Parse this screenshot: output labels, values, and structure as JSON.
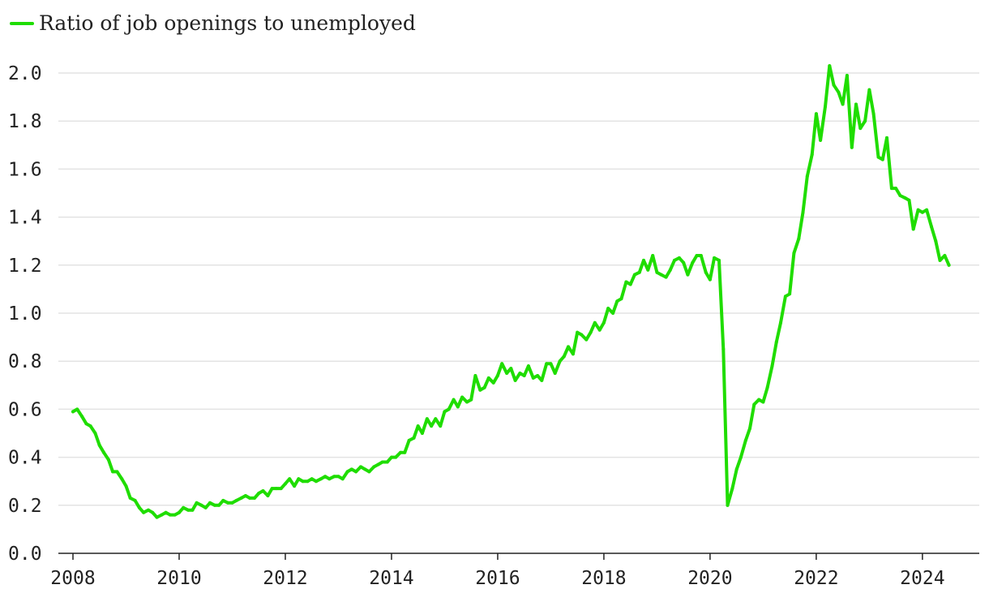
{
  "legend": {
    "label": "Ratio of job openings to unemployed"
  },
  "colors": {
    "series": "#1fdd00",
    "grid": "#e3e3e3",
    "axis": "#222222"
  },
  "chart_data": {
    "type": "line",
    "title": "",
    "xlabel": "",
    "ylabel": "",
    "xlim": [
      2008,
      2024.75
    ],
    "ylim": [
      0,
      2.0
    ],
    "grid": true,
    "legend_position": "top-left",
    "x_ticks": [
      "2008",
      "2010",
      "2012",
      "2014",
      "2016",
      "2018",
      "2020",
      "2022",
      "2024"
    ],
    "y_ticks": [
      "0.0",
      "0.2",
      "0.4",
      "0.6",
      "0.8",
      "1.0",
      "1.2",
      "1.4",
      "1.6",
      "1.8",
      "2.0"
    ],
    "series": [
      {
        "name": "Ratio of job openings to unemployed",
        "points": [
          [
            2008.0,
            0.59
          ],
          [
            2008.08,
            0.6
          ],
          [
            2008.17,
            0.57
          ],
          [
            2008.25,
            0.54
          ],
          [
            2008.33,
            0.53
          ],
          [
            2008.42,
            0.5
          ],
          [
            2008.5,
            0.45
          ],
          [
            2008.58,
            0.42
          ],
          [
            2008.67,
            0.39
          ],
          [
            2008.75,
            0.34
          ],
          [
            2008.83,
            0.34
          ],
          [
            2008.92,
            0.31
          ],
          [
            2009.0,
            0.28
          ],
          [
            2009.08,
            0.23
          ],
          [
            2009.17,
            0.22
          ],
          [
            2009.25,
            0.19
          ],
          [
            2009.33,
            0.17
          ],
          [
            2009.42,
            0.18
          ],
          [
            2009.5,
            0.17
          ],
          [
            2009.58,
            0.15
          ],
          [
            2009.67,
            0.16
          ],
          [
            2009.75,
            0.17
          ],
          [
            2009.83,
            0.16
          ],
          [
            2009.92,
            0.16
          ],
          [
            2010.0,
            0.17
          ],
          [
            2010.08,
            0.19
          ],
          [
            2010.17,
            0.18
          ],
          [
            2010.25,
            0.18
          ],
          [
            2010.33,
            0.21
          ],
          [
            2010.42,
            0.2
          ],
          [
            2010.5,
            0.19
          ],
          [
            2010.58,
            0.21
          ],
          [
            2010.67,
            0.2
          ],
          [
            2010.75,
            0.2
          ],
          [
            2010.83,
            0.22
          ],
          [
            2010.92,
            0.21
          ],
          [
            2011.0,
            0.21
          ],
          [
            2011.08,
            0.22
          ],
          [
            2011.17,
            0.23
          ],
          [
            2011.25,
            0.24
          ],
          [
            2011.33,
            0.23
          ],
          [
            2011.42,
            0.23
          ],
          [
            2011.5,
            0.25
          ],
          [
            2011.58,
            0.26
          ],
          [
            2011.67,
            0.24
          ],
          [
            2011.75,
            0.27
          ],
          [
            2011.83,
            0.27
          ],
          [
            2011.92,
            0.27
          ],
          [
            2012.0,
            0.29
          ],
          [
            2012.08,
            0.31
          ],
          [
            2012.17,
            0.28
          ],
          [
            2012.25,
            0.31
          ],
          [
            2012.33,
            0.3
          ],
          [
            2012.42,
            0.3
          ],
          [
            2012.5,
            0.31
          ],
          [
            2012.58,
            0.3
          ],
          [
            2012.67,
            0.31
          ],
          [
            2012.75,
            0.32
          ],
          [
            2012.83,
            0.31
          ],
          [
            2012.92,
            0.32
          ],
          [
            2013.0,
            0.32
          ],
          [
            2013.08,
            0.31
          ],
          [
            2013.17,
            0.34
          ],
          [
            2013.25,
            0.35
          ],
          [
            2013.33,
            0.34
          ],
          [
            2013.42,
            0.36
          ],
          [
            2013.5,
            0.35
          ],
          [
            2013.58,
            0.34
          ],
          [
            2013.67,
            0.36
          ],
          [
            2013.75,
            0.37
          ],
          [
            2013.83,
            0.38
          ],
          [
            2013.92,
            0.38
          ],
          [
            2014.0,
            0.4
          ],
          [
            2014.08,
            0.4
          ],
          [
            2014.17,
            0.42
          ],
          [
            2014.25,
            0.42
          ],
          [
            2014.33,
            0.47
          ],
          [
            2014.42,
            0.48
          ],
          [
            2014.5,
            0.53
          ],
          [
            2014.58,
            0.5
          ],
          [
            2014.67,
            0.56
          ],
          [
            2014.75,
            0.53
          ],
          [
            2014.83,
            0.56
          ],
          [
            2014.92,
            0.53
          ],
          [
            2015.0,
            0.59
          ],
          [
            2015.08,
            0.6
          ],
          [
            2015.17,
            0.64
          ],
          [
            2015.25,
            0.61
          ],
          [
            2015.33,
            0.65
          ],
          [
            2015.42,
            0.63
          ],
          [
            2015.5,
            0.64
          ],
          [
            2015.58,
            0.74
          ],
          [
            2015.67,
            0.68
          ],
          [
            2015.75,
            0.69
          ],
          [
            2015.83,
            0.73
          ],
          [
            2015.92,
            0.71
          ],
          [
            2016.0,
            0.74
          ],
          [
            2016.08,
            0.79
          ],
          [
            2016.17,
            0.75
          ],
          [
            2016.25,
            0.77
          ],
          [
            2016.33,
            0.72
          ],
          [
            2016.42,
            0.75
          ],
          [
            2016.5,
            0.74
          ],
          [
            2016.58,
            0.78
          ],
          [
            2016.67,
            0.73
          ],
          [
            2016.75,
            0.74
          ],
          [
            2016.83,
            0.72
          ],
          [
            2016.92,
            0.79
          ],
          [
            2017.0,
            0.79
          ],
          [
            2017.08,
            0.75
          ],
          [
            2017.17,
            0.8
          ],
          [
            2017.25,
            0.82
          ],
          [
            2017.33,
            0.86
          ],
          [
            2017.42,
            0.83
          ],
          [
            2017.5,
            0.92
          ],
          [
            2017.58,
            0.91
          ],
          [
            2017.67,
            0.89
          ],
          [
            2017.75,
            0.92
          ],
          [
            2017.83,
            0.96
          ],
          [
            2017.92,
            0.93
          ],
          [
            2018.0,
            0.96
          ],
          [
            2018.08,
            1.02
          ],
          [
            2018.17,
            1.0
          ],
          [
            2018.25,
            1.05
          ],
          [
            2018.33,
            1.06
          ],
          [
            2018.42,
            1.13
          ],
          [
            2018.5,
            1.12
          ],
          [
            2018.58,
            1.16
          ],
          [
            2018.67,
            1.17
          ],
          [
            2018.75,
            1.22
          ],
          [
            2018.83,
            1.18
          ],
          [
            2018.92,
            1.24
          ],
          [
            2019.0,
            1.17
          ],
          [
            2019.08,
            1.16
          ],
          [
            2019.17,
            1.15
          ],
          [
            2019.25,
            1.18
          ],
          [
            2019.33,
            1.22
          ],
          [
            2019.42,
            1.23
          ],
          [
            2019.5,
            1.21
          ],
          [
            2019.58,
            1.16
          ],
          [
            2019.67,
            1.21
          ],
          [
            2019.75,
            1.24
          ],
          [
            2019.83,
            1.24
          ],
          [
            2019.92,
            1.17
          ],
          [
            2020.0,
            1.14
          ],
          [
            2020.08,
            1.23
          ],
          [
            2020.17,
            1.22
          ],
          [
            2020.25,
            0.85
          ],
          [
            2020.33,
            0.2
          ],
          [
            2020.42,
            0.27
          ],
          [
            2020.5,
            0.35
          ],
          [
            2020.58,
            0.4
          ],
          [
            2020.67,
            0.47
          ],
          [
            2020.75,
            0.52
          ],
          [
            2020.83,
            0.62
          ],
          [
            2020.92,
            0.64
          ],
          [
            2021.0,
            0.63
          ],
          [
            2021.08,
            0.69
          ],
          [
            2021.17,
            0.78
          ],
          [
            2021.25,
            0.88
          ],
          [
            2021.33,
            0.96
          ],
          [
            2021.42,
            1.07
          ],
          [
            2021.5,
            1.08
          ],
          [
            2021.58,
            1.25
          ],
          [
            2021.67,
            1.31
          ],
          [
            2021.75,
            1.42
          ],
          [
            2021.83,
            1.57
          ],
          [
            2021.92,
            1.66
          ],
          [
            2022.0,
            1.83
          ],
          [
            2022.08,
            1.72
          ],
          [
            2022.17,
            1.86
          ],
          [
            2022.25,
            2.03
          ],
          [
            2022.33,
            1.95
          ],
          [
            2022.42,
            1.92
          ],
          [
            2022.5,
            1.87
          ],
          [
            2022.58,
            1.99
          ],
          [
            2022.67,
            1.69
          ],
          [
            2022.75,
            1.87
          ],
          [
            2022.83,
            1.77
          ],
          [
            2022.92,
            1.8
          ],
          [
            2023.0,
            1.93
          ],
          [
            2023.08,
            1.83
          ],
          [
            2023.17,
            1.65
          ],
          [
            2023.25,
            1.64
          ],
          [
            2023.33,
            1.73
          ],
          [
            2023.42,
            1.52
          ],
          [
            2023.5,
            1.52
          ],
          [
            2023.58,
            1.49
          ],
          [
            2023.67,
            1.48
          ],
          [
            2023.75,
            1.47
          ],
          [
            2023.83,
            1.35
          ],
          [
            2023.92,
            1.43
          ],
          [
            2024.0,
            1.42
          ],
          [
            2024.08,
            1.43
          ],
          [
            2024.17,
            1.36
          ],
          [
            2024.25,
            1.3
          ],
          [
            2024.33,
            1.22
          ],
          [
            2024.42,
            1.24
          ],
          [
            2024.5,
            1.2
          ]
        ]
      }
    ]
  }
}
